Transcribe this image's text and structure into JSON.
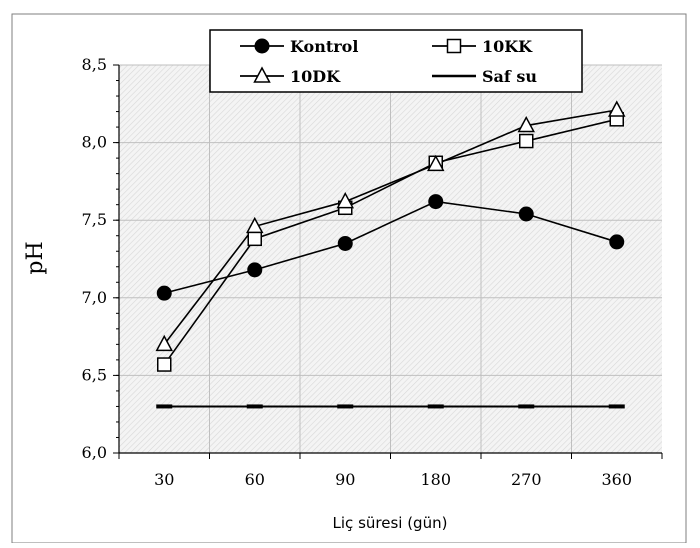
{
  "chart_data": {
    "type": "line",
    "categories": [
      "30",
      "60",
      "90",
      "180",
      "270",
      "360"
    ],
    "xlabel": "Liç süresi (gün)",
    "ylabel": "pH",
    "ylim": [
      6.0,
      8.5
    ],
    "yticks": [
      "6,0",
      "6,5",
      "7,0",
      "7,5",
      "8,0",
      "8,5"
    ],
    "ytick_values": [
      6.0,
      6.5,
      7.0,
      7.5,
      8.0,
      8.5
    ],
    "grid": true,
    "legend_position": "top",
    "series": [
      {
        "name": "Kontrol",
        "marker": "filled-circle",
        "values": [
          7.03,
          7.18,
          7.35,
          7.62,
          7.54,
          7.36
        ]
      },
      {
        "name": "10KK",
        "marker": "open-square",
        "values": [
          6.57,
          7.38,
          7.58,
          7.87,
          8.01,
          8.15
        ]
      },
      {
        "name": "10DK",
        "marker": "open-triangle",
        "values": [
          6.7,
          7.46,
          7.62,
          7.86,
          8.11,
          8.21
        ]
      },
      {
        "name": "Saf su",
        "marker": "dash",
        "values": [
          6.3,
          6.3,
          6.3,
          6.3,
          6.3,
          6.3
        ]
      }
    ],
    "colors": {
      "line": "#000000",
      "plot_background": "#f2f2f2",
      "grid": "#bfbfbf"
    }
  }
}
